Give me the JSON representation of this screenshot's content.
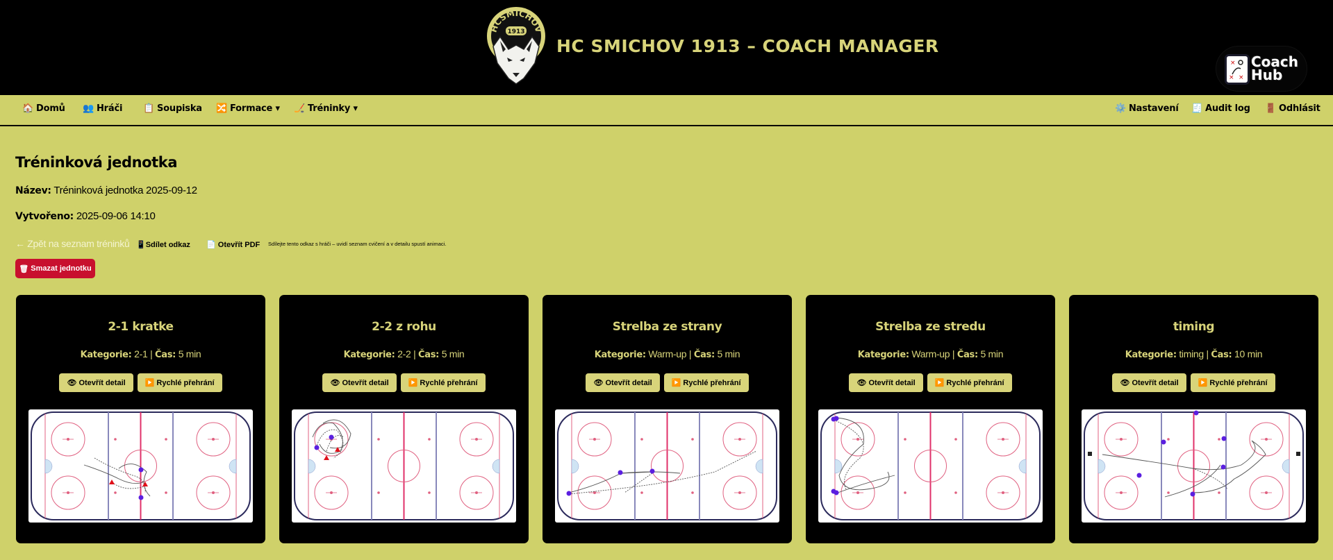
{
  "header": {
    "title": "HC SMICHOV 1913 – COACH MANAGER",
    "logo_text_top": "HCSMÍCHOV",
    "logo_year": "1913",
    "coachhub_line1": "Coach",
    "coachhub_line2": "Hub"
  },
  "nav": {
    "left": [
      {
        "icon": "🏠",
        "label": "Domů"
      },
      {
        "icon": "👥",
        "label": "Hráči"
      },
      {
        "icon": "📋",
        "label": "Soupiska"
      },
      {
        "icon": "🔀",
        "label": "Formace ▾"
      },
      {
        "icon": "🏒",
        "label": "Tréninky ▾"
      }
    ],
    "right": [
      {
        "icon": "⚙️",
        "label": "Nastavení"
      },
      {
        "icon": "🧾",
        "label": "Audit log"
      },
      {
        "icon": "🚪",
        "label": "Odhlásit"
      }
    ]
  },
  "page": {
    "title": "Tréninková jednotka",
    "name_label": "Název:",
    "name_value": "Tréninková jednotka 2025-09-12",
    "created_label": "Vytvořeno:",
    "created_value": "2025-09-06 14:10",
    "back_link": "← Zpět na seznam tréninků",
    "share_icon": "📱",
    "share_label": "Sdílet odkaz",
    "pdf_icon": "📄",
    "pdf_label": "Otevřít PDF",
    "hint": "Sdílejte tento odkaz s hráči – uvidí seznam cvičení a v detailu spustí animaci.",
    "delete_icon": "🗑",
    "delete_label": "Smazat jednotku"
  },
  "labels": {
    "category": "Kategorie:",
    "time": "Čas:",
    "open_detail_icon": "👁",
    "open_detail": "Otevřít detail",
    "quick_play_icon": "▶️",
    "quick_play": "Rychlé přehrání"
  },
  "cards": [
    {
      "title": "2-1 kratke",
      "category": "2-1",
      "time": "5 min"
    },
    {
      "title": "2-2 z rohu",
      "category": "2-2",
      "time": "5 min"
    },
    {
      "title": "Strelba ze strany",
      "category": "Warm-up",
      "time": "5 min"
    },
    {
      "title": "Strelba ze stredu",
      "category": "Warm-up",
      "time": "5 min"
    },
    {
      "title": "timing",
      "category": "timing",
      "time": "10 min"
    }
  ],
  "colors": {
    "background": "#cfd16a",
    "header_bg": "#000000",
    "accent": "#d8d47a",
    "danger": "#c8102e",
    "player_dot": "#5b1fe0",
    "cone": "#e0101a"
  }
}
